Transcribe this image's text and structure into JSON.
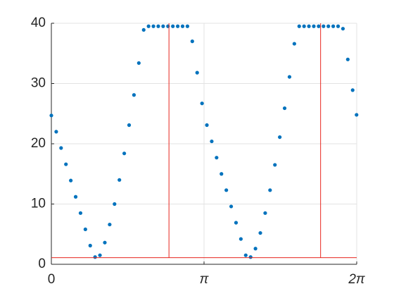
{
  "chart_data": {
    "type": "line",
    "xlim": [
      0,
      6.2832
    ],
    "ylim": [
      0,
      40
    ],
    "xticks": [
      0,
      {
        "value": 3.1416,
        "label": "π"
      },
      {
        "value": 6.2832,
        "label": "2π"
      }
    ],
    "yticks": [
      0,
      10,
      20,
      30,
      40
    ],
    "grid": true,
    "series": [
      {
        "color": "#0072bd",
        "mode": "markers",
        "x": [
          0,
          0.1,
          0.2,
          0.3,
          0.4,
          0.5,
          0.6,
          0.7,
          0.8,
          0.9,
          1.0,
          1.1,
          1.2,
          1.3,
          1.4,
          1.5,
          1.6,
          1.7,
          1.8,
          1.9,
          2.0,
          2.1,
          2.2,
          2.3,
          2.4,
          2.5,
          2.6,
          2.7,
          2.8,
          2.9,
          3.0,
          3.1,
          3.2,
          3.3,
          3.4,
          3.5,
          3.6,
          3.7,
          3.8,
          3.9,
          4.0,
          4.1,
          4.2,
          4.3,
          4.4,
          4.5,
          4.6,
          4.7,
          4.8,
          4.9,
          5.0,
          5.1,
          5.2,
          5.3,
          5.4,
          5.5,
          5.6,
          5.7,
          5.8,
          5.9,
          6.0,
          6.1,
          6.2,
          6.28
        ],
        "values": [
          24.7,
          22.0,
          19.3,
          16.6,
          13.9,
          11.2,
          8.5,
          5.8,
          3.1,
          1.2,
          1.5,
          3.6,
          6.6,
          10.0,
          14.0,
          18.4,
          23.1,
          28.1,
          33.4,
          38.9,
          39.5,
          39.5,
          39.5,
          39.5,
          39.5,
          39.5,
          39.5,
          39.5,
          39.5,
          37.0,
          31.8,
          26.7,
          23.1,
          20.4,
          17.7,
          15.0,
          12.3,
          9.6,
          6.9,
          4.2,
          1.5,
          1.2,
          2.6,
          5.2,
          8.5,
          12.3,
          16.5,
          21.1,
          25.9,
          31.1,
          36.6,
          39.5,
          39.5,
          39.5,
          39.5,
          39.5,
          39.5,
          39.5,
          39.5,
          39.5,
          39.1,
          34.0,
          28.9,
          24.8
        ]
      },
      {
        "color": "#e8261f",
        "mode": "lines",
        "x": [
          0,
          2.42,
          2.42,
          2.42,
          5.54,
          5.54,
          5.54,
          6.2832
        ],
        "values": [
          1.1,
          1.1,
          40,
          1.1,
          1.1,
          40,
          1.1,
          1.1
        ]
      }
    ]
  }
}
